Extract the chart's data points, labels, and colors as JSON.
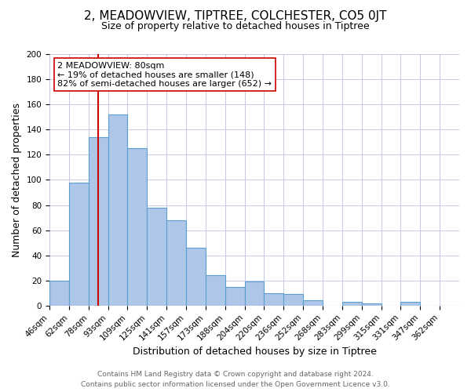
{
  "title": "2, MEADOWVIEW, TIPTREE, COLCHESTER, CO5 0JT",
  "subtitle": "Size of property relative to detached houses in Tiptree",
  "xlabel": "Distribution of detached houses by size in Tiptree",
  "ylabel": "Number of detached properties",
  "footer_line1": "Contains HM Land Registry data © Crown copyright and database right 2024.",
  "footer_line2": "Contains public sector information licensed under the Open Government Licence v3.0.",
  "bin_labels": [
    "46sqm",
    "62sqm",
    "78sqm",
    "93sqm",
    "109sqm",
    "125sqm",
    "141sqm",
    "157sqm",
    "173sqm",
    "188sqm",
    "204sqm",
    "220sqm",
    "236sqm",
    "252sqm",
    "268sqm",
    "283sqm",
    "299sqm",
    "315sqm",
    "331sqm",
    "347sqm",
    "362sqm"
  ],
  "bar_values": [
    20,
    98,
    134,
    152,
    125,
    78,
    68,
    46,
    24,
    15,
    19,
    10,
    9,
    4,
    0,
    3,
    2,
    0,
    3,
    0,
    0
  ],
  "bar_color": "#aec6e8",
  "bar_edge_color": "#5a9fd4",
  "annotation_line1": "2 MEADOWVIEW: 80sqm",
  "annotation_line2": "← 19% of detached houses are smaller (148)",
  "annotation_line3": "82% of semi-detached houses are larger (652) →",
  "vline_x": 2.5,
  "vline_color": "#cc0000",
  "ylim": [
    0,
    200
  ],
  "yticks": [
    0,
    20,
    40,
    60,
    80,
    100,
    120,
    140,
    160,
    180,
    200
  ],
  "grid_color": "#c8c8e8",
  "background_color": "#ffffff",
  "title_fontsize": 11,
  "subtitle_fontsize": 9,
  "annotation_fontsize": 8,
  "axis_label_fontsize": 9,
  "tick_fontsize": 7.5,
  "footer_fontsize": 6.5
}
